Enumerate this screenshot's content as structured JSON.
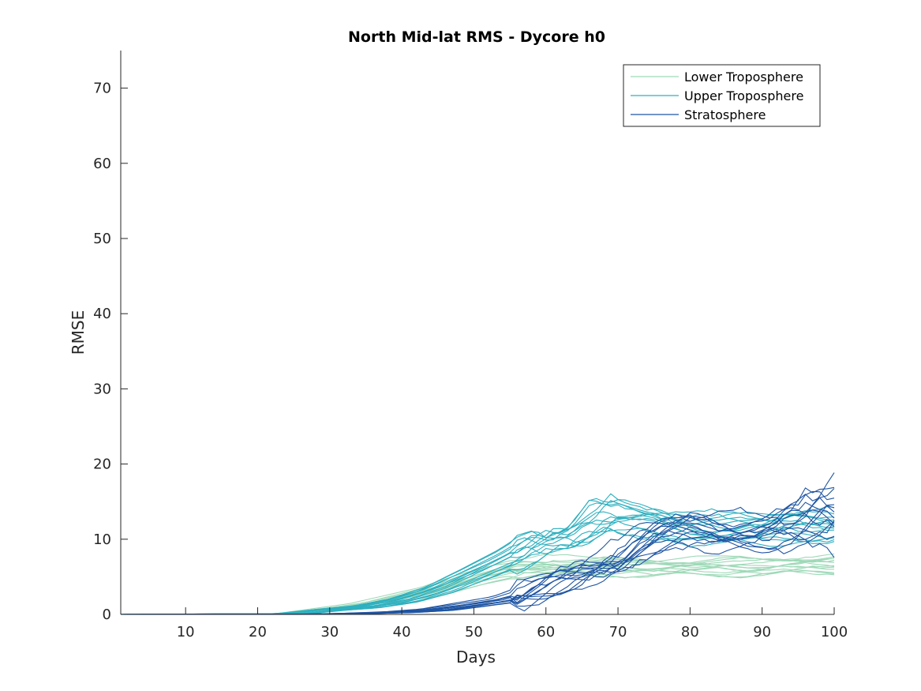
{
  "chart_data": {
    "type": "line",
    "title": "North Mid-lat RMS - Dycore h0",
    "xlabel": "Days",
    "ylabel": "RMSE",
    "xlim": [
      1,
      100
    ],
    "ylim": [
      0,
      75
    ],
    "xticks": [
      10,
      20,
      30,
      40,
      50,
      60,
      70,
      80,
      90,
      100
    ],
    "yticks": [
      0,
      10,
      20,
      30,
      40,
      50,
      60,
      70
    ],
    "grid": false,
    "legend_position": "top-right",
    "colors": {
      "lower": "#9ed9b8",
      "upper": "#2eb0bf",
      "strat": "#1f55a3"
    },
    "legend": [
      {
        "key": "lower",
        "label": "Lower Troposphere"
      },
      {
        "key": "upper",
        "label": "Upper Troposphere"
      },
      {
        "key": "strat",
        "label": "Stratosphere"
      }
    ],
    "series_groups": {
      "lower": {
        "x": [
          1,
          25,
          30,
          35,
          40,
          45,
          50,
          55,
          60,
          65,
          70,
          75,
          80,
          85,
          90,
          95,
          100
        ],
        "y": [
          0,
          0.1,
          0.7,
          1.3,
          2.3,
          3.3,
          4.8,
          6.0,
          6.5,
          6.3,
          6.4,
          6.2,
          6.3,
          6.4,
          6.3,
          6.6,
          6.8
        ]
      },
      "upper": {
        "x": [
          1,
          25,
          30,
          35,
          40,
          45,
          50,
          55,
          60,
          62,
          65,
          68,
          70,
          75,
          80,
          85,
          90,
          95,
          100
        ],
        "y": [
          0,
          0.1,
          0.6,
          1.0,
          1.8,
          3.2,
          5.3,
          7.5,
          10.2,
          9.6,
          10.8,
          13.5,
          12.8,
          12.5,
          11.6,
          11.3,
          11.2,
          12.0,
          11.8
        ]
      },
      "strat": {
        "x": [
          1,
          30,
          35,
          40,
          45,
          50,
          55,
          60,
          65,
          70,
          75,
          80,
          85,
          90,
          95,
          100
        ],
        "y": [
          0,
          0.05,
          0.15,
          0.3,
          0.6,
          1.3,
          2.0,
          3.5,
          5.8,
          7.2,
          10.0,
          11.5,
          11.0,
          10.8,
          12.0,
          13.5
        ]
      }
    },
    "members_per_group": 14
  }
}
